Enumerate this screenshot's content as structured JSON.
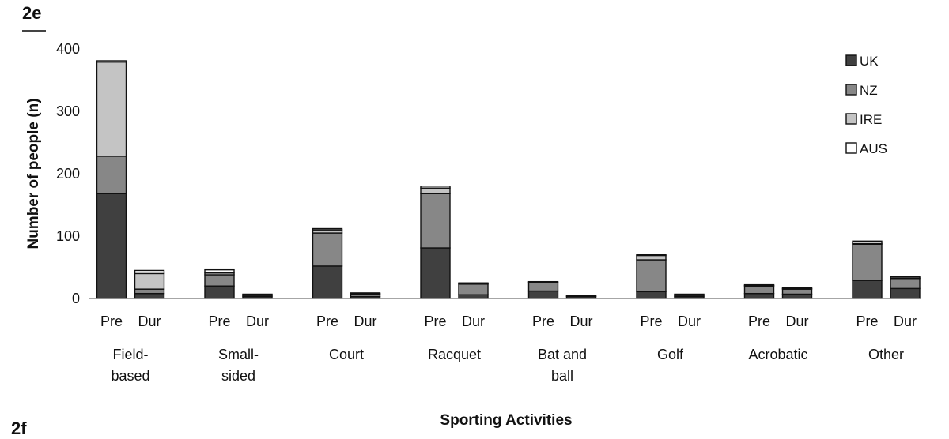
{
  "panel_labels": {
    "top": "2e",
    "bottom": "2f"
  },
  "colors": {
    "UK": "#404040",
    "NZ": "#878787",
    "IRE": "#c4c4c4",
    "AUS": "#ffffff",
    "outline": "#111111"
  },
  "chart_data": {
    "type": "bar",
    "stacked": true,
    "xlabel": "Sporting Activities",
    "ylabel": "Number of people (n)",
    "ylim": [
      0,
      400
    ],
    "yticks": [
      0,
      100,
      200,
      300,
      400
    ],
    "grid": false,
    "legend_position": "top-right",
    "categories": [
      {
        "label": [
          "Field-",
          "based"
        ],
        "periods": [
          "Pre",
          "Dur"
        ]
      },
      {
        "label": [
          "Small-",
          "sided"
        ],
        "periods": [
          "Pre",
          "Dur"
        ]
      },
      {
        "label": [
          "Court"
        ],
        "periods": [
          "Pre",
          "Dur"
        ]
      },
      {
        "label": [
          "Racquet"
        ],
        "periods": [
          "Pre",
          "Dur"
        ]
      },
      {
        "label": [
          "Bat and",
          "ball"
        ],
        "periods": [
          "Pre",
          "Dur"
        ]
      },
      {
        "label": [
          "Golf"
        ],
        "periods": [
          "Pre",
          "Dur"
        ]
      },
      {
        "label": [
          "Acrobatic"
        ],
        "periods": [
          "Pre",
          "Dur"
        ]
      },
      {
        "label": [
          "Other"
        ],
        "periods": [
          "Pre",
          "Dur"
        ]
      }
    ],
    "series": [
      {
        "name": "UK",
        "values": [
          [
            168,
            8
          ],
          [
            20,
            3
          ],
          [
            52,
            3
          ],
          [
            81,
            6
          ],
          [
            12,
            3
          ],
          [
            11,
            3
          ],
          [
            8,
            7
          ],
          [
            29,
            16
          ]
        ]
      },
      {
        "name": "NZ",
        "values": [
          [
            60,
            7
          ],
          [
            18,
            2
          ],
          [
            53,
            4
          ],
          [
            87,
            17
          ],
          [
            14,
            1
          ],
          [
            51,
            2
          ],
          [
            12,
            8
          ],
          [
            58,
            16
          ]
        ]
      },
      {
        "name": "IRE",
        "values": [
          [
            151,
            25
          ],
          [
            3,
            1
          ],
          [
            5,
            1
          ],
          [
            9,
            1
          ],
          [
            0,
            0
          ],
          [
            7,
            1
          ],
          [
            1,
            1
          ],
          [
            1,
            1
          ]
        ]
      },
      {
        "name": "AUS",
        "values": [
          [
            2,
            5
          ],
          [
            5,
            1
          ],
          [
            2,
            1
          ],
          [
            3,
            1
          ],
          [
            1,
            1
          ],
          [
            1,
            1
          ],
          [
            1,
            1
          ],
          [
            4,
            2
          ]
        ]
      }
    ]
  }
}
